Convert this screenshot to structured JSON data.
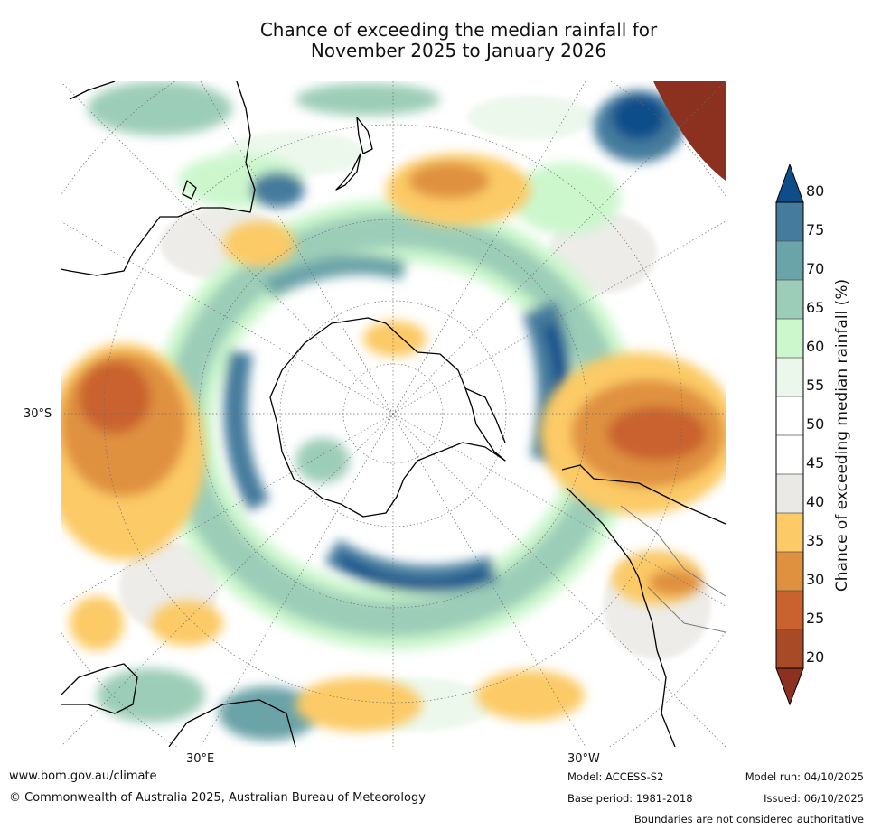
{
  "title_line1": "Chance of exceeding the median rainfall for",
  "title_line2": "November 2025 to January 2026",
  "map": {
    "projection": "south polar stereographic",
    "lat_labels": [
      "30°S"
    ],
    "lon_labels": [
      "30°E",
      "30°W"
    ],
    "features": [
      "Antarctica",
      "Australia",
      "New Zealand",
      "South America",
      "Africa"
    ]
  },
  "colorbar": {
    "title": "Chance of exceeding median rainfall (%)",
    "ticks": [
      "80",
      "75",
      "70",
      "65",
      "60",
      "55",
      "50",
      "45",
      "40",
      "35",
      "30",
      "25",
      "20"
    ],
    "colors": {
      "above_80": "#0f4d8a",
      "75_80": "#457b9d",
      "70_75": "#6aa3a8",
      "65_70": "#9ccdb8",
      "60_65": "#ccf7cd",
      "55_60": "#eaf7ea",
      "50_55": "#ffffff",
      "45_50": "#ffffff",
      "40_45": "#ebe9e6",
      "35_40": "#fcca66",
      "30_35": "#e0913f",
      "25_30": "#c9622e",
      "20_25": "#a84a26",
      "below_20": "#8c3120"
    }
  },
  "footer": {
    "url": "www.bom.gov.au/climate",
    "copyright": "© Commonwealth of Australia 2025, Australian Bureau of Meteorology",
    "model": "Model: ACCESS-S2",
    "base_period": "Base period: 1981-2018",
    "model_run": "Model run: 04/10/2025",
    "issued": "Issued: 06/10/2025",
    "boundaries_note": "Boundaries are not considered authoritative"
  }
}
